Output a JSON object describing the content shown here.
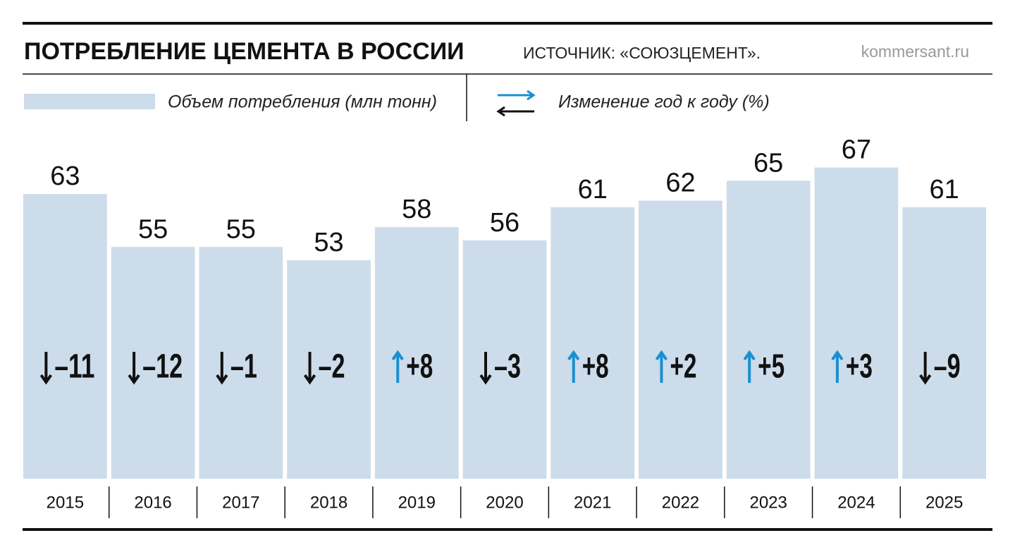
{
  "chart_data": {
    "type": "bar",
    "title": "ПОТРЕБЛЕНИЕ ЦЕМЕНТА В РОССИИ",
    "subtitle": "ИСТОЧНИК: «СОЮЗЦЕМЕНТ».",
    "source": "kommersant.ru",
    "categories": [
      "2015",
      "2016",
      "2017",
      "2018",
      "2019",
      "2020",
      "2021",
      "2022",
      "2023",
      "2024",
      "2025"
    ],
    "series": [
      {
        "name": "Объем потребления (млн тонн)",
        "color": "#cddcea",
        "values": [
          63,
          55,
          55,
          53,
          58,
          56,
          61,
          62,
          65,
          67,
          61
        ]
      },
      {
        "name": "Изменение год к году (%)",
        "color": "#1a8fd1",
        "down_color": "#111111",
        "values": [
          -11,
          -12,
          -1,
          -2,
          8,
          -3,
          8,
          2,
          5,
          3,
          -9
        ],
        "value_labels": [
          "–11",
          "–12",
          "–1",
          "–2",
          "+8",
          "–3",
          "+8",
          "+2",
          "+5",
          "+3",
          "–9"
        ]
      }
    ],
    "ylim": [
      20,
      71
    ]
  }
}
